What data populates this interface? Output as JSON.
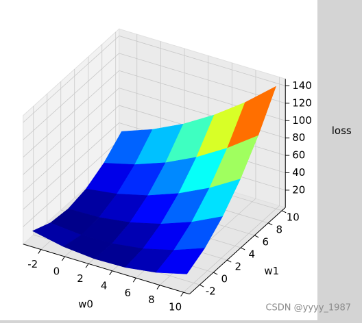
{
  "chart_data": {
    "type": "surface",
    "x_label": "w0",
    "y_label": "w1",
    "z_label": "loss",
    "x": [
      -3,
      -0.4,
      2.2,
      4.8,
      7.4,
      10
    ],
    "y": [
      -3,
      -0.4,
      2.2,
      4.8,
      7.4,
      10
    ],
    "z": [
      [
        13.6,
        6.3,
        3.0,
        3.8,
        8.6,
        17.5
      ],
      [
        4.5,
        1.2,
        2.0,
        6.8,
        15.7,
        28.7
      ],
      [
        2.2,
        2.9,
        7.8,
        16.7,
        29.6,
        46.6
      ],
      [
        6.6,
        11.4,
        20.3,
        33.3,
        50.3,
        71.3
      ],
      [
        17.8,
        26.7,
        39.6,
        56.6,
        77.7,
        102.8
      ],
      [
        35.7,
        48.7,
        65.7,
        86.7,
        111.8,
        141.0
      ]
    ],
    "colormap": "jet",
    "xlim": [
      -3.5,
      10.5
    ],
    "ylim": [
      -3.5,
      10.5
    ],
    "zlim": [
      0,
      148
    ],
    "xticks": [
      -2,
      0,
      2,
      4,
      6,
      8,
      10
    ],
    "yticks": [
      -2,
      0,
      2,
      4,
      6,
      8,
      10
    ],
    "zticks": [
      20,
      40,
      60,
      80,
      100,
      120,
      140
    ],
    "grid": true
  },
  "watermark": "CSDN @yyyy_1987"
}
